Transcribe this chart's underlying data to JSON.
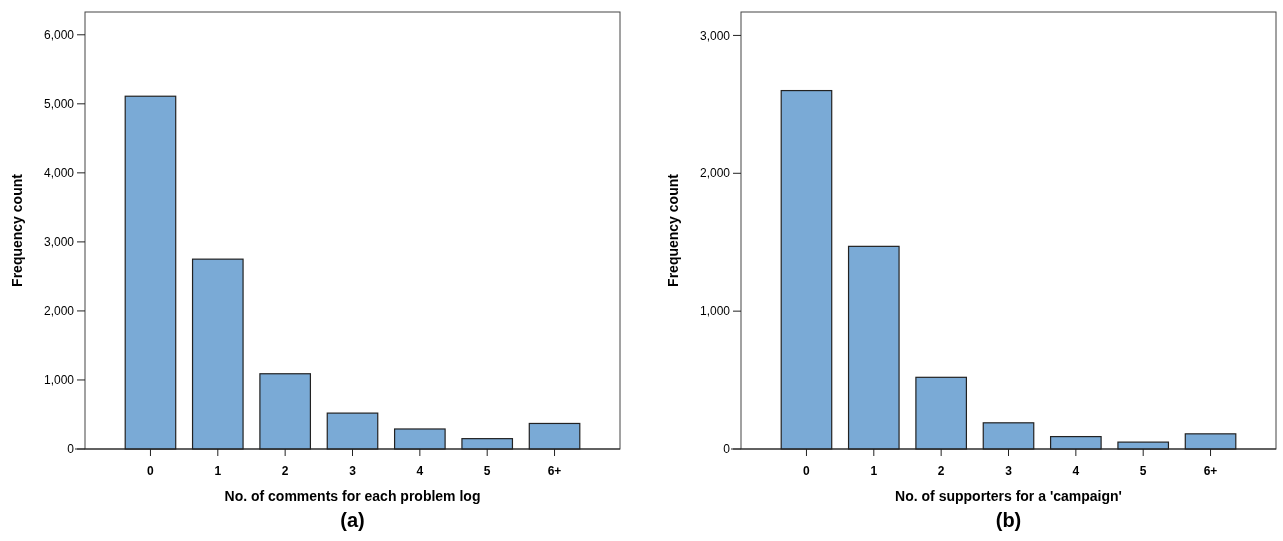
{
  "chart_data": [
    {
      "type": "bar",
      "xlabel": "No. of comments for each problem log",
      "ylabel": "Frequency count",
      "categories": [
        "0",
        "1",
        "2",
        "3",
        "4",
        "5",
        "6+"
      ],
      "values": [
        5110,
        2750,
        1090,
        520,
        290,
        150,
        370
      ],
      "color": "#7aaad6",
      "ylim": [
        0,
        6330
      ],
      "yticks": [
        {
          "value": 0,
          "label": "0"
        },
        {
          "value": 1000,
          "label": "1,000"
        },
        {
          "value": 2000,
          "label": "2,000"
        },
        {
          "value": 3000,
          "label": "3,000"
        },
        {
          "value": 4000,
          "label": "4,000"
        },
        {
          "value": 5000,
          "label": "5,000"
        },
        {
          "value": 6000,
          "label": "6,000"
        }
      ],
      "grid": false,
      "annotations": [
        "(a)"
      ]
    },
    {
      "type": "bar",
      "xlabel": "No. of supporters for a 'campaign'",
      "ylabel": "Frequency count",
      "categories": [
        "0",
        "1",
        "2",
        "3",
        "4",
        "5",
        "6+"
      ],
      "values": [
        2600,
        1470,
        520,
        190,
        90,
        50,
        110
      ],
      "color": "#7aaad6",
      "ylim": [
        0,
        3170
      ],
      "yticks": [
        {
          "value": 0,
          "label": "0"
        },
        {
          "value": 1000,
          "label": "1,000"
        },
        {
          "value": 2000,
          "label": "2,000"
        },
        {
          "value": 3000,
          "label": "3,000"
        }
      ],
      "grid": false,
      "annotations": [
        "(b)"
      ]
    }
  ]
}
